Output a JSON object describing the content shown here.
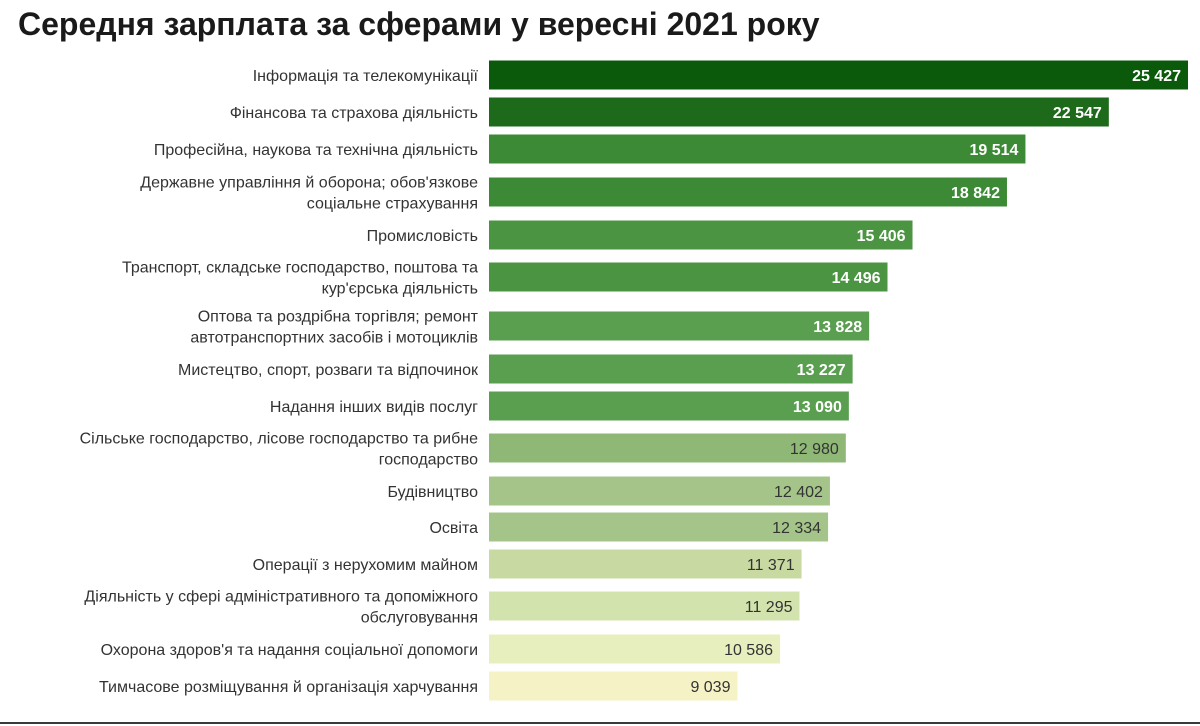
{
  "chart_data": {
    "type": "bar",
    "orientation": "horizontal",
    "title": "Середня зарплата за сферами у вересні 2021 року",
    "categories": [
      [
        "Інформація та телекомунікації"
      ],
      [
        "Фінансова та страхова діяльність"
      ],
      [
        "Професійна, наукова та технічна діяльність"
      ],
      [
        "Державне управління й оборона; обов'язкове",
        "соціальне страхування"
      ],
      [
        "Промисловість"
      ],
      [
        "Транспорт, складське господарство, поштова та",
        "кур'єрська діяльність"
      ],
      [
        "Оптова та роздрібна торгівля; ремонт",
        "автотранспортних засобів і мотоциклів"
      ],
      [
        "Мистецтво, спорт, розваги та відпочинок"
      ],
      [
        "Надання інших видів послуг"
      ],
      [
        "Сільське господарство, лісове господарство та рибне",
        "господарство"
      ],
      [
        "Будівництво"
      ],
      [
        "Освіта"
      ],
      [
        "Операції з нерухомим майном"
      ],
      [
        "Діяльність у сфері адміністративного та допоміжного",
        "обслуговування"
      ],
      [
        "Охорона здоров'я та надання соціальної допомоги"
      ],
      [
        "Тимчасове розміщування й організація харчування"
      ]
    ],
    "values": [
      25427,
      22547,
      19514,
      18842,
      15406,
      14496,
      13828,
      13227,
      13090,
      12980,
      12402,
      12334,
      11371,
      11295,
      10586,
      9039
    ],
    "value_labels": [
      "25 427",
      "22 547",
      "19 514",
      "18 842",
      "15 406",
      "14 496",
      "13 828",
      "13 227",
      "13 090",
      "12 980",
      "12 402",
      "12 334",
      "11 371",
      "11 295",
      "10 586",
      "9 039"
    ],
    "xlim": [
      0,
      25427
    ],
    "grid": false,
    "legend": "none",
    "colors": [
      "#0b5a0b",
      "#1e6a1b",
      "#3d8a36",
      "#3d8a36",
      "#4a9442",
      "#4a9442",
      "#5a9e50",
      "#5a9e50",
      "#5a9e50",
      "#8fb877",
      "#a4c48a",
      "#a4c48a",
      "#c8daa2",
      "#d3e3ad",
      "#e6efbd",
      "#f5f3c6"
    ],
    "label_colors": [
      "#ffffff",
      "#ffffff",
      "#ffffff",
      "#ffffff",
      "#ffffff",
      "#ffffff",
      "#ffffff",
      "#ffffff",
      "#ffffff",
      "#333333",
      "#333333",
      "#333333",
      "#333333",
      "#333333",
      "#333333",
      "#333333"
    ]
  }
}
